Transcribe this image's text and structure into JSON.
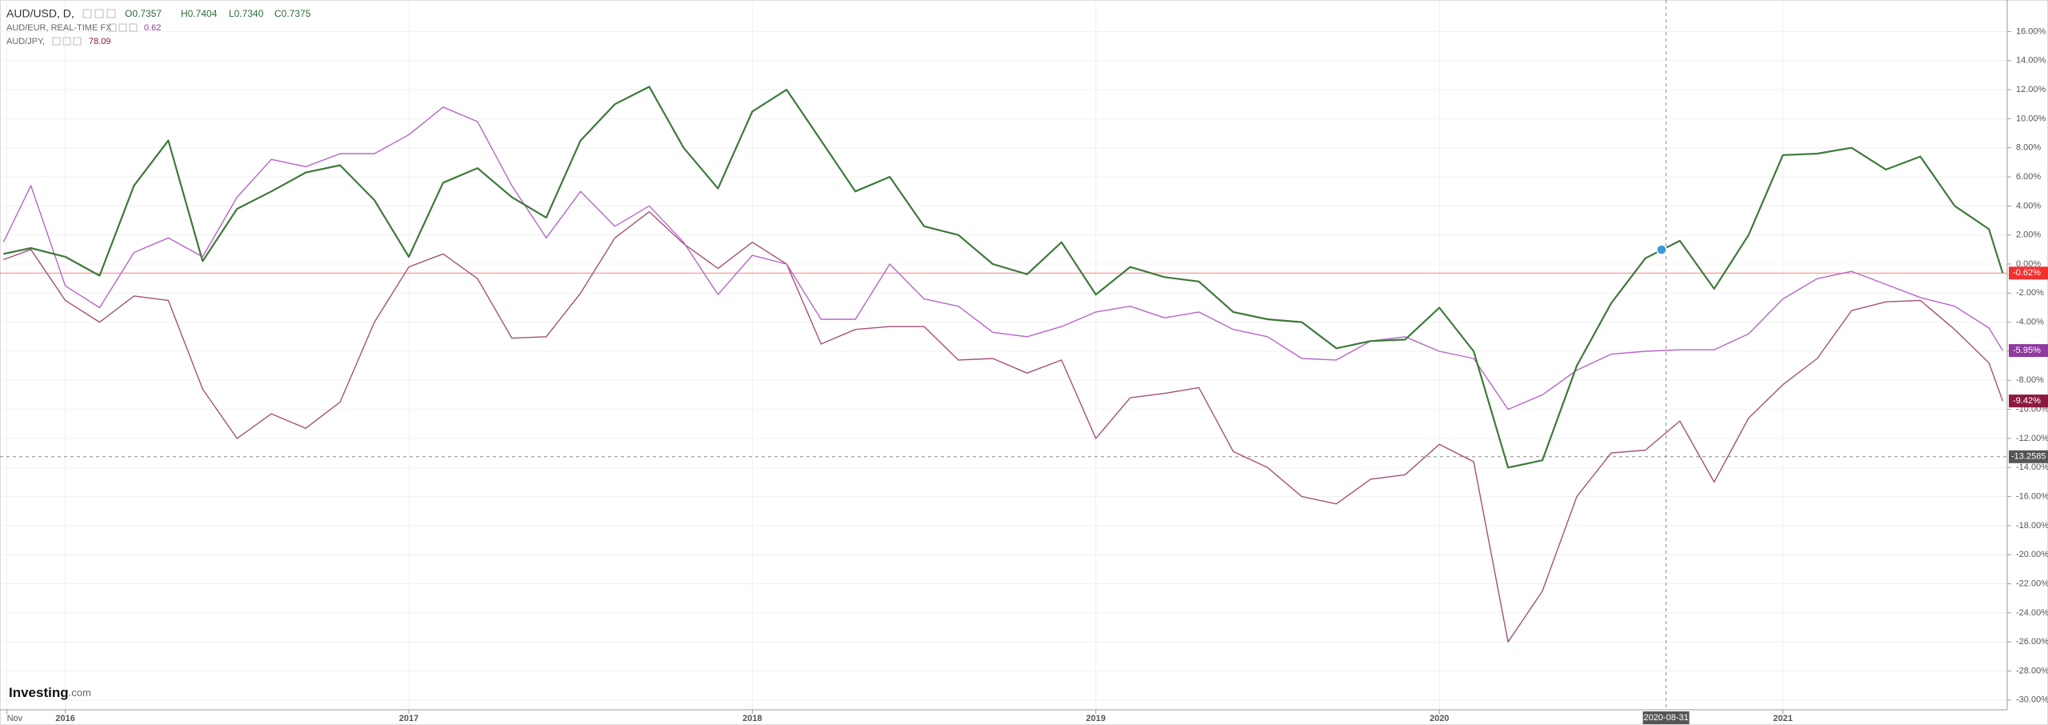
{
  "chart_data": {
    "type": "line",
    "series": [
      {
        "name": "AUD/USD, D,",
        "color": "#3d7a3a",
        "label_color": "#f23030",
        "last_label": "-0.62%",
        "ohlc": [
          "O0.7357",
          "H0.7404",
          "L0.7340",
          "C0.7375"
        ],
        "values": [
          0.7,
          1.1,
          0.5,
          -0.8,
          5.4,
          8.5,
          0.2,
          3.8,
          5.0,
          6.3,
          6.8,
          4.4,
          0.5,
          5.6,
          6.6,
          4.6,
          3.2,
          8.5,
          11.0,
          12.2,
          8.0,
          5.2,
          10.5,
          12.0,
          8.5,
          5.0,
          6.0,
          2.6,
          2.0,
          0.0,
          -0.7,
          1.5,
          -2.1,
          -0.2,
          -0.9,
          -1.2,
          -3.3,
          -3.8,
          -4.0,
          -5.8,
          -5.3,
          -5.2,
          -3.0,
          -6.0,
          -14.0,
          -13.5,
          -7.0,
          -2.7,
          0.4,
          1.6,
          -1.7,
          2.0,
          7.5,
          7.6,
          8.0,
          6.5,
          7.4,
          4.0,
          2.4,
          -0.62
        ]
      },
      {
        "name": "AUD/EUR, REAL-TIME FX",
        "color": "#b666c9",
        "label_color": "#8e3a9e",
        "last_label": "-5.95%",
        "header_value": 0.62,
        "values": [
          1.5,
          5.4,
          -1.5,
          -3.0,
          0.8,
          1.8,
          0.5,
          4.6,
          7.2,
          6.7,
          7.6,
          7.6,
          8.9,
          10.8,
          9.8,
          5.4,
          1.8,
          5.0,
          2.6,
          4.0,
          1.5,
          -2.1,
          0.6,
          0.0,
          -3.8,
          -3.8,
          0.0,
          -2.4,
          -2.9,
          -4.7,
          -5.0,
          -4.3,
          -3.3,
          -2.9,
          -3.7,
          -3.3,
          -4.5,
          -5.0,
          -6.5,
          -6.6,
          -5.3,
          -5.0,
          -6.0,
          -6.5,
          -10.0,
          -9.0,
          -7.3,
          -6.2,
          -6.0,
          -5.9,
          -5.9,
          -4.8,
          -2.4,
          -1.0,
          -0.5,
          -1.4,
          -2.3,
          -2.9,
          -4.4,
          -5.95
        ]
      },
      {
        "name": "AUD/JPY,",
        "color": "#a4517a",
        "label_color": "#8b1a3e",
        "last_label": "-9.42%",
        "header_value": 78.09,
        "values": [
          0.3,
          1.0,
          -2.5,
          -4.0,
          -2.2,
          -2.5,
          -8.6,
          -12.0,
          -10.3,
          -11.3,
          -9.5,
          -4.0,
          -0.2,
          0.7,
          -1.0,
          -5.1,
          -5.0,
          -2.0,
          1.8,
          3.6,
          1.4,
          -0.3,
          1.5,
          0.0,
          -5.5,
          -4.5,
          -4.3,
          -4.3,
          -6.6,
          -6.5,
          -7.5,
          -6.6,
          -12.0,
          -9.2,
          -8.9,
          -8.5,
          -12.9,
          -14.0,
          -16.0,
          -16.5,
          -14.8,
          -14.5,
          -12.4,
          -13.6,
          -26.0,
          -22.5,
          -16.0,
          -13.0,
          -12.8,
          -10.8,
          -15.0,
          -10.6,
          -8.3,
          -6.5,
          -3.2,
          -2.6,
          -2.5,
          -4.5,
          -6.8,
          -9.42
        ]
      }
    ],
    "x": [
      2015.82,
      2015.9,
      2016.0,
      2016.1,
      2016.2,
      2016.3,
      2016.4,
      2016.5,
      2016.6,
      2016.7,
      2016.8,
      2016.9,
      2017.0,
      2017.1,
      2017.2,
      2017.3,
      2017.4,
      2017.5,
      2017.6,
      2017.7,
      2017.8,
      2017.9,
      2018.0,
      2018.1,
      2018.2,
      2018.3,
      2018.4,
      2018.5,
      2018.6,
      2018.7,
      2018.8,
      2018.9,
      2019.0,
      2019.1,
      2019.2,
      2019.3,
      2019.4,
      2019.5,
      2019.6,
      2019.7,
      2019.8,
      2019.9,
      2020.0,
      2020.1,
      2020.2,
      2020.3,
      2020.4,
      2020.5,
      2020.6,
      2020.7,
      2020.8,
      2020.9,
      2021.0,
      2021.1,
      2021.2,
      2021.3,
      2021.4,
      2021.5,
      2021.6,
      2021.64
    ],
    "xlim": [
      2015.81,
      2021.653
    ],
    "xticks": [
      {
        "value": 2015.83,
        "label": "Nov"
      },
      2016,
      2017,
      2018,
      2019,
      2020,
      2021
    ],
    "ylim": [
      -30.67,
      18.17
    ],
    "yticks": [
      {
        "value": 16,
        "label": "16.00%"
      },
      {
        "value": 14,
        "label": "14.00%"
      },
      {
        "value": 12,
        "label": "12.00%"
      },
      {
        "value": 10,
        "label": "10.00%"
      },
      {
        "value": 8,
        "label": "8.00%"
      },
      {
        "value": 6,
        "label": "6.00%"
      },
      {
        "value": 4,
        "label": "4.00%"
      },
      {
        "value": 2,
        "label": "2.00%"
      },
      {
        "value": 0,
        "label": "0.00%"
      },
      {
        "value": -2,
        "label": "-2.00%"
      },
      {
        "value": -4,
        "label": "-4.00%"
      },
      {
        "value": -6,
        "label": "-6.00%"
      },
      {
        "value": -8,
        "label": "-8.00%"
      },
      {
        "value": -10,
        "label": "-10.00%"
      },
      {
        "value": -12,
        "label": "-12.00%"
      },
      {
        "value": -14,
        "label": "-14.00%"
      },
      {
        "value": -16,
        "label": "-16.00%"
      },
      {
        "value": -18,
        "label": "-18.00%"
      },
      {
        "value": -20,
        "label": "-20.00%"
      },
      {
        "value": -22,
        "label": "-22.00%"
      },
      {
        "value": -24,
        "label": "-24.00%"
      },
      {
        "value": -26,
        "label": "-26.00%"
      },
      {
        "value": -28,
        "label": "-28.00%"
      },
      {
        "value": -30,
        "label": "-30.00%"
      }
    ],
    "grid": true,
    "crosshair": {
      "y": -13.2585,
      "x": 2020.66,
      "x_label": "2020-08-31"
    },
    "branding": [
      "Investing",
      ".com"
    ]
  }
}
